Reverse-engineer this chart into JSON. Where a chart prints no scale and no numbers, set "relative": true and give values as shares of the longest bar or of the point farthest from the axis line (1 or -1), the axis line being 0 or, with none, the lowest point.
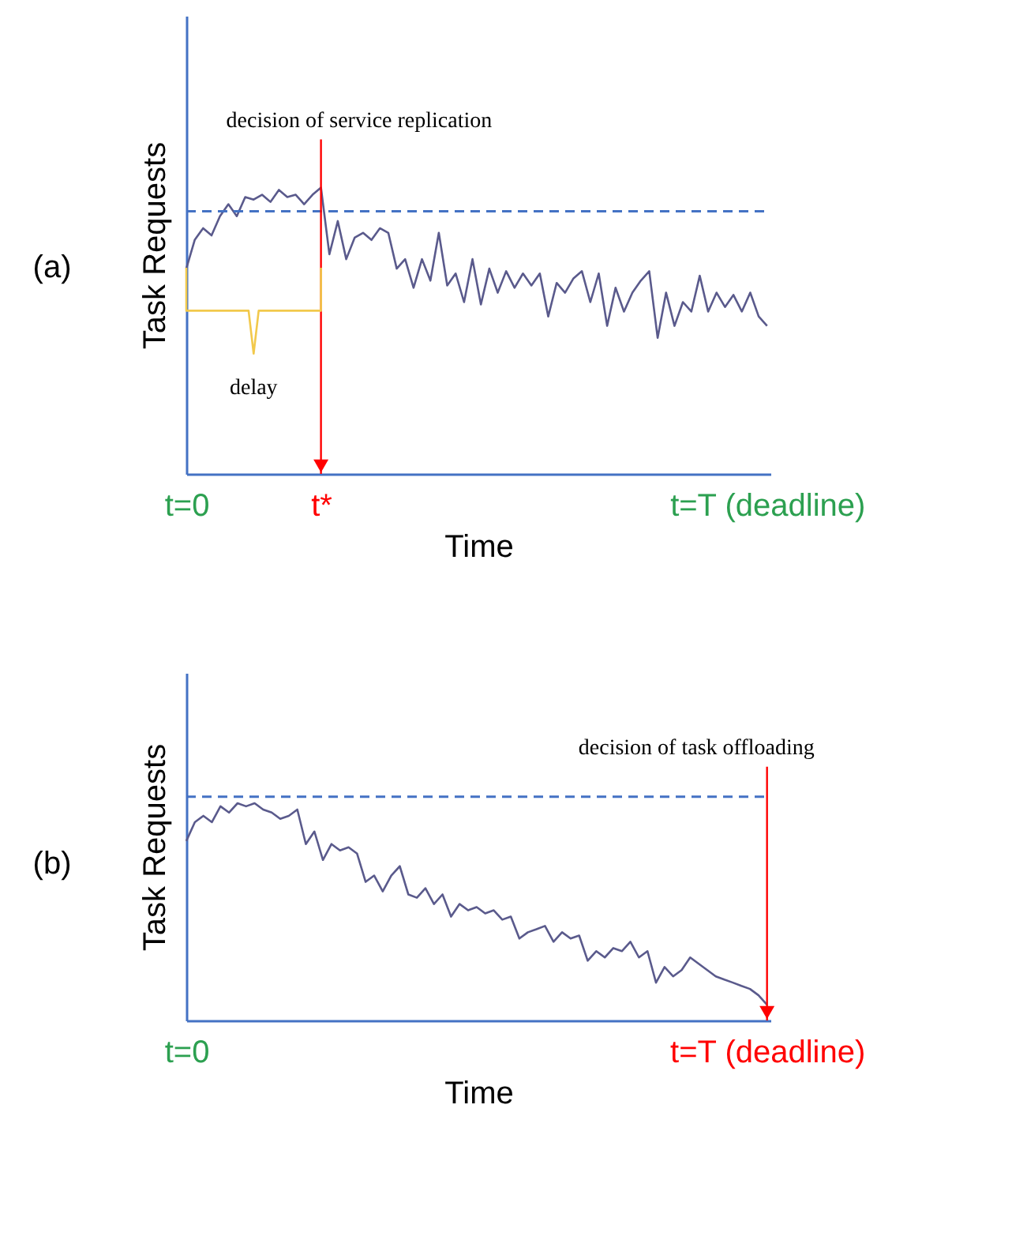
{
  "chart_data": [
    {
      "type": "line",
      "relative": true,
      "xlabel": "Time",
      "ylabel": "Task Requests",
      "categories": [
        "t=0",
        null,
        null,
        null,
        null,
        null,
        null,
        null,
        null,
        null,
        null,
        null,
        null,
        null,
        null,
        null,
        "t*",
        null,
        null,
        null,
        null,
        null,
        null,
        null,
        null,
        null,
        null,
        null,
        null,
        null,
        null,
        null,
        null,
        null,
        null,
        null,
        null,
        null,
        null,
        null,
        null,
        null,
        null,
        null,
        null,
        null,
        null,
        null,
        null,
        null,
        null,
        null,
        null,
        null,
        null,
        null,
        null,
        null,
        null,
        null,
        null,
        null,
        null,
        null,
        null,
        null,
        null,
        null,
        null,
        "t=T (deadline)"
      ],
      "series": [
        {
          "color": "#5a5a8c",
          "values": [
            0.717,
            0.817,
            0.858,
            0.833,
            0.9,
            0.942,
            0.9,
            0.967,
            0.958,
            0.975,
            0.95,
            0.992,
            0.967,
            0.975,
            0.942,
            0.975,
            1.0,
            0.767,
            0.883,
            0.75,
            0.825,
            0.842,
            0.817,
            0.858,
            0.842,
            0.717,
            0.75,
            0.65,
            0.75,
            0.675,
            0.842,
            0.658,
            0.7,
            0.6,
            0.75,
            0.592,
            0.717,
            0.633,
            0.708,
            0.65,
            0.7,
            0.658,
            0.7,
            0.55,
            0.667,
            0.633,
            0.683,
            0.708,
            0.6,
            0.7,
            0.517,
            0.65,
            0.567,
            0.633,
            0.675,
            0.708,
            0.475,
            0.633,
            0.517,
            0.6,
            0.567,
            0.692,
            0.567,
            0.633,
            0.583,
            0.625,
            0.567,
            0.633,
            0.55,
            0.517
          ]
        }
      ],
      "ref_lines": [
        {
          "axis": "y",
          "value": 0.917,
          "color": "#4472c4",
          "line_style": "dashed"
        },
        {
          "axis": "x",
          "value": "t*",
          "label": "decision of service replication",
          "color": "#ff0000"
        }
      ],
      "annotations": [
        "(a)",
        "delay"
      ]
    },
    {
      "type": "line",
      "relative": true,
      "xlabel": "Time",
      "ylabel": "Task Requests",
      "categories": [
        "t=0",
        null,
        null,
        null,
        null,
        null,
        null,
        null,
        null,
        null,
        null,
        null,
        null,
        null,
        null,
        null,
        null,
        null,
        null,
        null,
        null,
        null,
        null,
        null,
        null,
        null,
        null,
        null,
        null,
        null,
        null,
        null,
        null,
        null,
        null,
        null,
        null,
        null,
        null,
        null,
        null,
        null,
        null,
        null,
        null,
        null,
        null,
        null,
        null,
        null,
        null,
        null,
        null,
        null,
        null,
        null,
        null,
        null,
        null,
        null,
        null,
        null,
        null,
        null,
        null,
        null,
        null,
        null,
        "t=T (deadline)"
      ],
      "series": [
        {
          "color": "#5a5a8c",
          "values": [
            0.826,
            0.913,
            0.942,
            0.913,
            0.986,
            0.957,
            1.0,
            0.986,
            1.0,
            0.971,
            0.957,
            0.928,
            0.942,
            0.971,
            0.812,
            0.87,
            0.739,
            0.812,
            0.783,
            0.797,
            0.768,
            0.638,
            0.667,
            0.594,
            0.667,
            0.71,
            0.58,
            0.565,
            0.609,
            0.536,
            0.58,
            0.478,
            0.536,
            0.507,
            0.522,
            0.493,
            0.507,
            0.464,
            0.478,
            0.377,
            0.406,
            0.42,
            0.435,
            0.362,
            0.406,
            0.377,
            0.391,
            0.275,
            0.319,
            0.29,
            0.333,
            0.319,
            0.362,
            0.29,
            0.319,
            0.174,
            0.246,
            0.203,
            0.232,
            0.29,
            0.261,
            0.232,
            0.203,
            0.188,
            0.174,
            0.159,
            0.145,
            0.116,
            0.072
          ]
        }
      ],
      "ref_lines": [
        {
          "axis": "y",
          "value": 1.03,
          "color": "#4472c4",
          "line_style": "dashed"
        },
        {
          "axis": "x",
          "value": "t=T (deadline)",
          "label": "decision of task offloading",
          "color": "#ff0000"
        }
      ],
      "annotations": [
        "(b)"
      ]
    }
  ]
}
